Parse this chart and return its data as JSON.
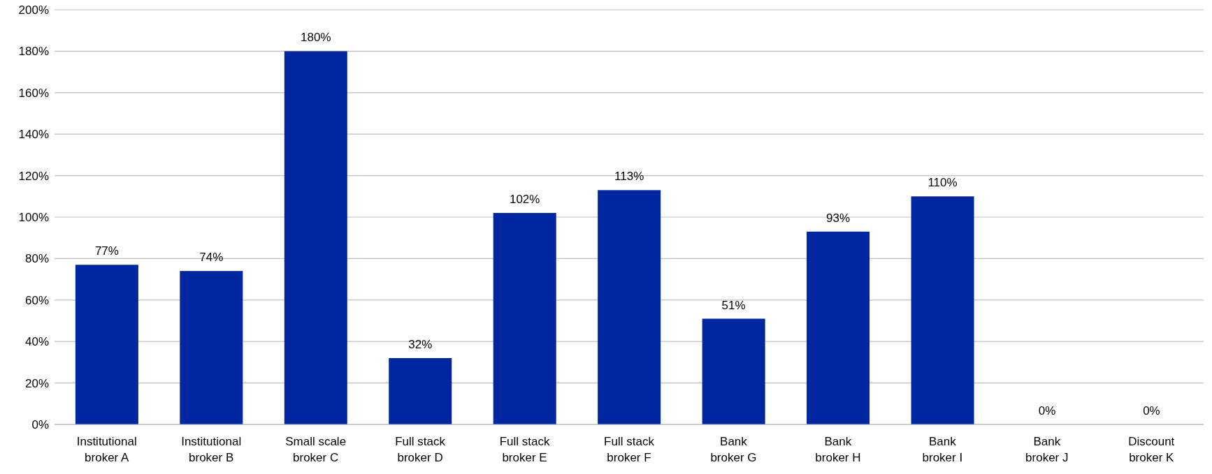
{
  "chart_data": {
    "type": "bar",
    "categories": [
      "Institutional broker A",
      "Institutional broker B",
      "Small scale broker C",
      "Full stack broker D",
      "Full stack broker E",
      "Full stack broker F",
      "Bank broker G",
      "Bank broker H",
      "Bank broker I",
      "Bank broker J",
      "Discount broker K"
    ],
    "values": [
      77,
      74,
      180,
      32,
      102,
      113,
      51,
      93,
      110,
      0,
      0
    ],
    "value_labels": [
      "77%",
      "74%",
      "180%",
      "32%",
      "102%",
      "113%",
      "51%",
      "93%",
      "110%",
      "0%",
      "0%"
    ],
    "color": "#0026a0",
    "ylim": [
      0,
      200
    ],
    "yticks": [
      {
        "value": 0,
        "label": "0%"
      },
      {
        "value": 20,
        "label": "20%"
      },
      {
        "value": 40,
        "label": "40%"
      },
      {
        "value": 60,
        "label": "60%"
      },
      {
        "value": 80,
        "label": "80%"
      },
      {
        "value": 100,
        "label": "100%"
      },
      {
        "value": 120,
        "label": "120%"
      },
      {
        "value": 140,
        "label": "140%"
      },
      {
        "value": 160,
        "label": "160%"
      },
      {
        "value": 180,
        "label": "180%"
      },
      {
        "value": 200,
        "label": "200%"
      }
    ],
    "grid": "y"
  }
}
